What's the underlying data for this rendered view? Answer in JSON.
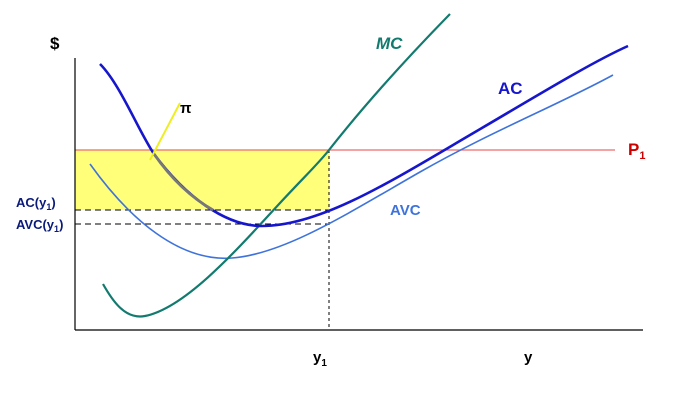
{
  "chart_data": {
    "type": "line",
    "y_axis_label": "$",
    "x_axis_label": "y",
    "x_tick_label": "y",
    "x_tick_subscript": "1",
    "price_label": "P",
    "price_subscript": "1",
    "profit_label": "π",
    "ac_at_y1_label": "AC(y",
    "ac_at_y1_close": ")",
    "avc_at_y1_label": "AVC(y",
    "avc_at_y1_close": ")",
    "label_subscript": "1",
    "series": [
      {
        "name": "MC",
        "color": "#127a6e"
      },
      {
        "name": "AC",
        "color": "#1616cc"
      },
      {
        "name": "AVC",
        "color": "#3f73dc"
      }
    ],
    "profit_fill_color": "#ffff66",
    "price_line_color": "#ee6b6b",
    "gray_segment_color": "#777777"
  }
}
